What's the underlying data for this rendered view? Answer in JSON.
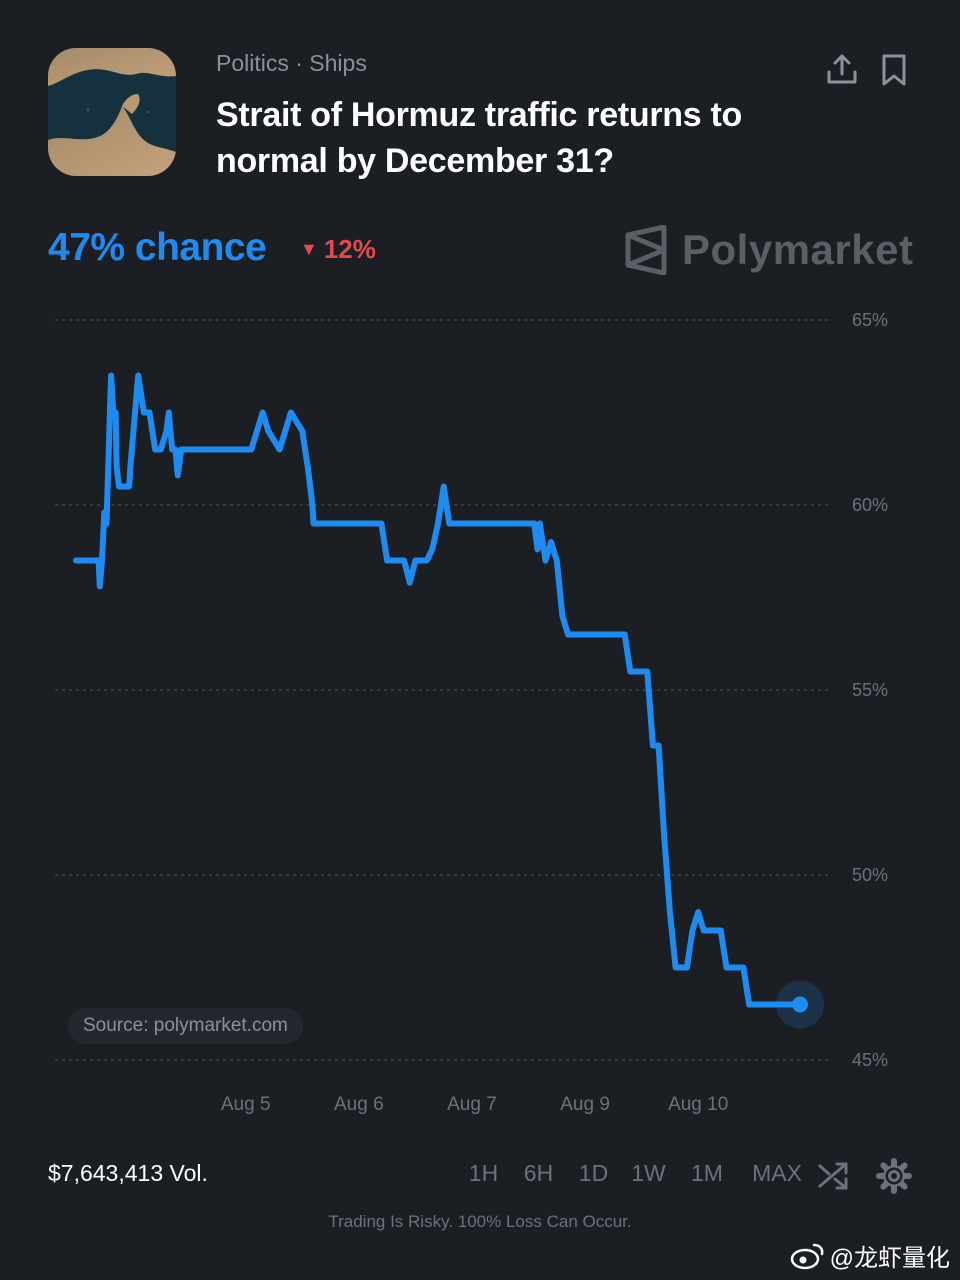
{
  "header": {
    "category": "Politics · Ships",
    "title": "Strait of Hormuz traffic returns to normal by December 31?"
  },
  "summary": {
    "chance": "47% chance",
    "delta_icon": "triangle-down-icon",
    "delta": "12%"
  },
  "brand": {
    "name": "Polymarket",
    "logo": "polymarket-logo-icon"
  },
  "chart_data": {
    "type": "line",
    "title": "",
    "xlabel": "",
    "ylabel": "",
    "ylim": [
      45,
      65
    ],
    "y_ticks": [
      65,
      60,
      55,
      50,
      45
    ],
    "y_tick_labels": [
      "65%",
      "60%",
      "55%",
      "50%",
      "45%"
    ],
    "x_ticks": [
      1.5,
      2.5,
      3.5,
      4.5,
      5.5
    ],
    "x_tick_labels": [
      "Aug 5",
      "Aug 6",
      "Aug 7",
      "Aug 9",
      "Aug 10"
    ],
    "grid": true,
    "line_color": "#1d8cf2",
    "series": [
      {
        "x": [
          0.0,
          0.2,
          0.21,
          0.23,
          0.25,
          0.27,
          0.29,
          0.3,
          0.31,
          0.33,
          0.35,
          0.36,
          0.38,
          0.4,
          0.42,
          0.45,
          0.47,
          0.48,
          0.55,
          0.6,
          0.65,
          0.7,
          0.75,
          0.8,
          0.82,
          0.85,
          0.88,
          0.9,
          0.93,
          0.95,
          0.97,
          1.0,
          1.02,
          1.05,
          1.08,
          1.1,
          1.2,
          1.3,
          1.4,
          1.45,
          1.5,
          1.55,
          1.6,
          1.65,
          1.7,
          1.8,
          1.9,
          2.0,
          2.05,
          2.07,
          2.09,
          2.1,
          2.12,
          2.15,
          2.2,
          2.25,
          2.3,
          2.35,
          2.4,
          2.45,
          2.5,
          2.6,
          2.7,
          2.75,
          2.8,
          2.85,
          2.9,
          2.95,
          3.0,
          3.05,
          3.1,
          3.15,
          3.2,
          3.25,
          3.3,
          3.4,
          3.5,
          3.55,
          3.6,
          3.65,
          3.7,
          3.8,
          3.9,
          4.0,
          4.05,
          4.08,
          4.1,
          4.15,
          4.2,
          4.25,
          4.3,
          4.35,
          4.4,
          4.45,
          4.5,
          4.55,
          4.6,
          4.65,
          4.7,
          4.75,
          4.8,
          4.85,
          4.9,
          4.95,
          5.0,
          5.05,
          5.1,
          5.15,
          5.2,
          5.25,
          5.3,
          5.35,
          5.4,
          5.45,
          5.5,
          5.55,
          5.6,
          5.65,
          5.7,
          5.75,
          5.8,
          5.85,
          5.9,
          5.95,
          6.0,
          6.05,
          6.1,
          6.2,
          6.3,
          6.4
        ],
        "y": [
          58.5,
          58.5,
          57.8,
          58.5,
          59.8,
          59.5,
          61.5,
          62.5,
          63.5,
          62.5,
          62.5,
          61.0,
          60.5,
          60.5,
          60.5,
          60.5,
          60.5,
          61.0,
          63.5,
          62.5,
          62.5,
          61.5,
          61.5,
          62.0,
          62.5,
          61.5,
          61.5,
          60.8,
          61.5,
          61.5,
          61.5,
          61.5,
          61.5,
          61.5,
          61.5,
          61.5,
          61.5,
          61.5,
          61.5,
          61.5,
          61.5,
          61.5,
          62.0,
          62.5,
          62.0,
          61.5,
          62.5,
          62.0,
          61.0,
          60.5,
          60.0,
          59.5,
          59.5,
          59.5,
          59.5,
          59.5,
          59.5,
          59.5,
          59.5,
          59.5,
          59.5,
          59.5,
          59.5,
          58.5,
          58.5,
          58.5,
          58.5,
          57.9,
          58.5,
          58.5,
          58.5,
          58.8,
          59.5,
          60.5,
          59.5,
          59.5,
          59.5,
          59.5,
          59.5,
          59.5,
          59.5,
          59.5,
          59.5,
          59.5,
          59.5,
          58.8,
          59.5,
          58.5,
          59.0,
          58.5,
          57.0,
          56.5,
          56.5,
          56.5,
          56.5,
          56.5,
          56.5,
          56.5,
          56.5,
          56.5,
          56.5,
          56.5,
          55.5,
          55.5,
          55.5,
          55.5,
          53.5,
          53.5,
          51.0,
          49.0,
          47.5,
          47.5,
          47.5,
          48.5,
          49.0,
          48.5,
          48.5,
          48.5,
          48.5,
          47.5,
          47.5,
          47.5,
          47.5,
          46.5,
          46.5,
          46.5,
          46.5,
          46.5,
          46.5,
          46.5
        ]
      }
    ],
    "source": "Source: polymarket.com"
  },
  "footer": {
    "volume": "$7,643,413 Vol.",
    "ranges": [
      "1H",
      "6H",
      "1D",
      "1W",
      "1M",
      "MAX"
    ],
    "shuffle_icon": "shuffle-icon",
    "settings_icon": "gear-icon",
    "disclaimer": "Trading Is Risky. 100% Loss Can Occur."
  },
  "watermark": {
    "icon": "weibo-logo-icon",
    "text": "@龙虾量化"
  }
}
